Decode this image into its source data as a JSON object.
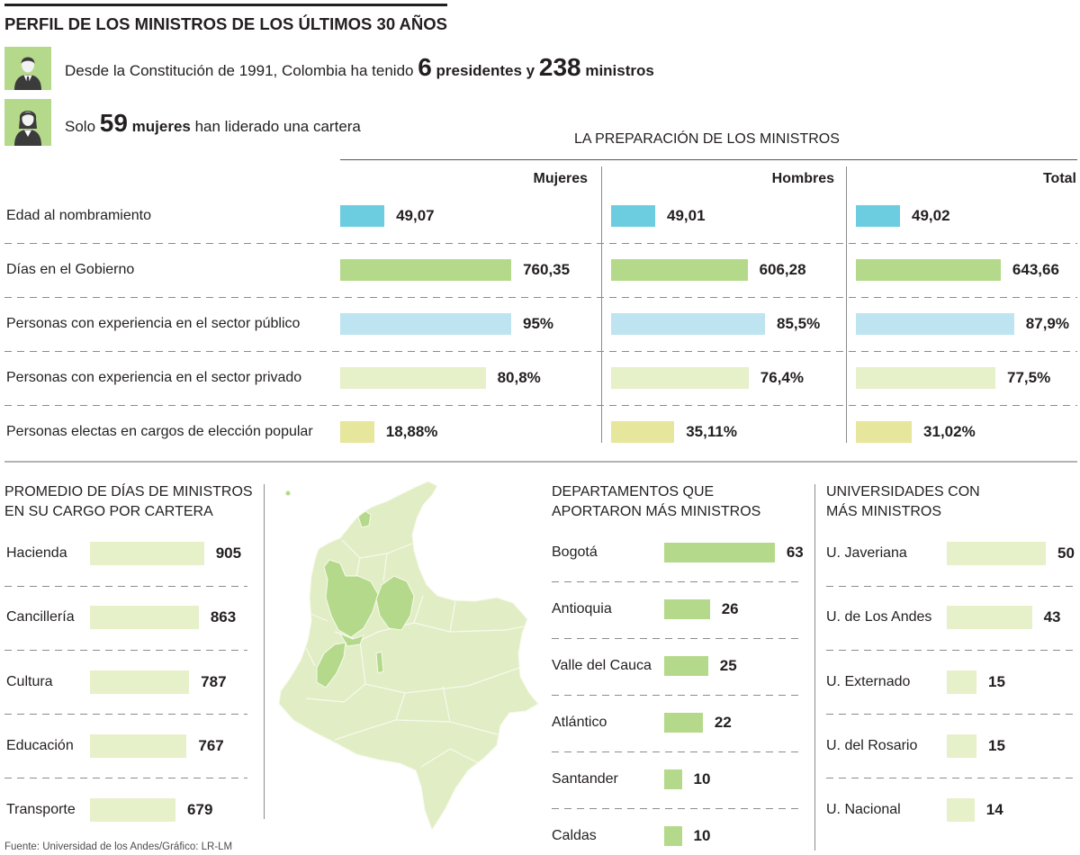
{
  "header": {
    "title": "PERFIL DE LOS MINISTROS DE LOS ÚLTIMOS 30 AÑOS",
    "summary_presidents": {
      "text": "Desde la Constitución de 1991, Colombia ha tenido",
      "presidents_count": "6",
      "presidents_label": "presidentes y",
      "ministers_count": "238",
      "ministers_label": "ministros",
      "icon": "man-icon"
    },
    "summary_women": {
      "text_before": "Solo",
      "women_count": "59",
      "women_label": "mujeres",
      "text_after": "han liderado una cartera",
      "icon": "woman-icon"
    }
  },
  "chart_data": [
    {
      "type": "bar",
      "orientation": "horizontal",
      "title": "LA PREPARACIÓN DE LOS MINISTROS",
      "categories": [
        "Edad al nombramiento",
        "Días en el Gobierno",
        "Personas con experiencia en el sector público",
        "Personas con experiencia en el sector privado",
        "Personas electas en cargos de elección popular"
      ],
      "series": [
        {
          "name": "Mujeres",
          "values": [
            49.07,
            760.35,
            95,
            80.8,
            18.88
          ],
          "labels": [
            "49,07",
            "760,35",
            "95%",
            "80,8%",
            "18,88%"
          ]
        },
        {
          "name": "Hombres",
          "values": [
            49.01,
            606.28,
            85.5,
            76.4,
            35.11
          ],
          "labels": [
            "49,01",
            "606,28",
            "85,5%",
            "76,4%",
            "35,11%"
          ]
        },
        {
          "name": "Total",
          "values": [
            49.02,
            643.66,
            87.9,
            77.5,
            31.02
          ],
          "labels": [
            "49,02",
            "643,66",
            "87,9%",
            "77,5%",
            "31,02%"
          ]
        }
      ],
      "row_colors": [
        "#6ccde1",
        "#b4d98a",
        "#bde4f0",
        "#e6f0c9",
        "#e6e69c"
      ]
    },
    {
      "type": "bar",
      "orientation": "horizontal",
      "title_lines": [
        "PROMEDIO DE DÍAS DE MINISTROS",
        "EN SU CARGO POR CARTERA"
      ],
      "categories": [
        "Hacienda",
        "Cancillería",
        "Cultura",
        "Educación",
        "Transporte"
      ],
      "values": [
        905,
        863,
        787,
        767,
        679
      ],
      "bar_color": "#e6f0c9"
    },
    {
      "type": "bar",
      "orientation": "horizontal",
      "title_lines": [
        "DEPARTAMENTOS QUE",
        "APORTARON MÁS MINISTROS"
      ],
      "categories": [
        "Bogotá",
        "Antioquia",
        "Valle del Cauca",
        "Atlántico",
        "Santander",
        "Caldas"
      ],
      "values": [
        63,
        26,
        25,
        22,
        10,
        10
      ],
      "bar_color": "#b4d98a"
    },
    {
      "type": "bar",
      "orientation": "horizontal",
      "title_lines": [
        "UNIVERSIDADES CON",
        "MÁS MINISTROS"
      ],
      "categories": [
        "U. Javeriana",
        "U. de Los Andes",
        "U. Externado",
        "U. del Rosario",
        "U. Nacional"
      ],
      "values": [
        50,
        43,
        15,
        15,
        14
      ],
      "bar_color": "#e6f0c9"
    }
  ],
  "map": {
    "icon": "colombia-map",
    "base_color": "#e1edc4",
    "highlight_color": "#b4d98a"
  },
  "colors": {
    "text": "#231f20",
    "icon_background": "#b4d98a",
    "icon_figure": "#3b3b3b"
  },
  "footer": {
    "source": "Fuente: Universidad de los Andes/Gráfico: LR-LM"
  }
}
